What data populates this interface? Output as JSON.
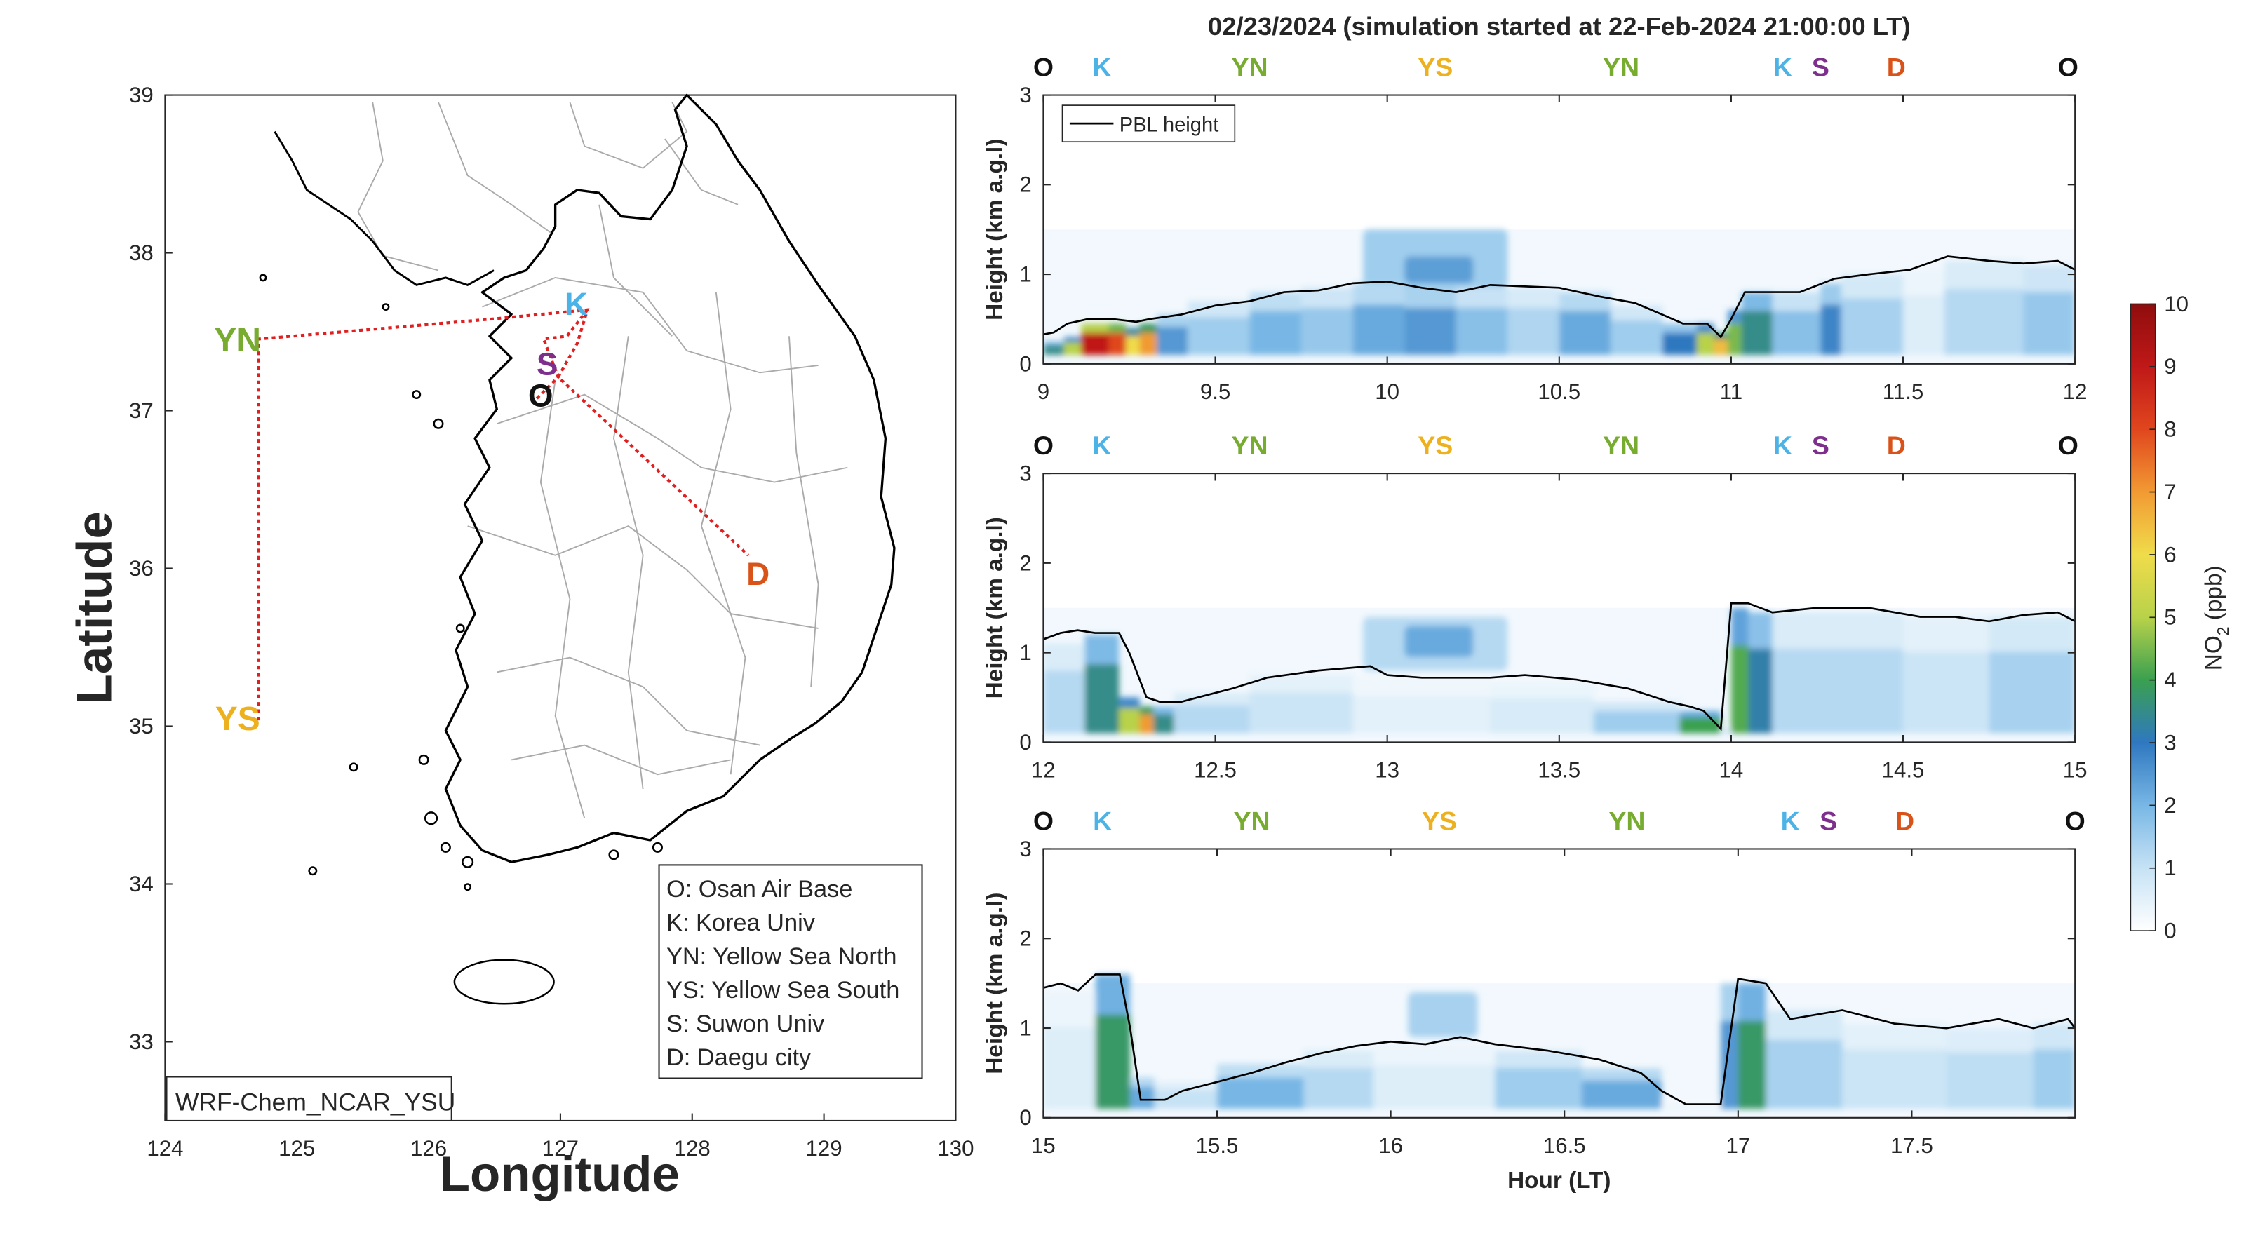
{
  "figure_title": "02/23/2024 (simulation started at 22-Feb-2024 21:00:00 LT)",
  "colors": {
    "O": "#111111",
    "K": "#4DB3E6",
    "YN": "#77AC30",
    "YS": "#EDB120",
    "S": "#7E2F8E",
    "D": "#D95319",
    "pbl": "#000000",
    "track": "#E02020",
    "coast": "#000000",
    "boundary": "#aaaaaa"
  },
  "map": {
    "xlabel": "Longitude",
    "ylabel": "Latitude",
    "xlim": [
      124,
      130
    ],
    "ylim": [
      32.5,
      39
    ],
    "xticks": [
      "124",
      "125",
      "126",
      "127",
      "128",
      "129",
      "130"
    ],
    "yticks": [
      "33",
      "34",
      "35",
      "36",
      "37",
      "38",
      "39"
    ],
    "model_label": "WRF-Chem_NCAR_YSU",
    "site_labels": [
      {
        "code": "K",
        "lon": 127.12,
        "lat": 37.68
      },
      {
        "code": "S",
        "lon": 126.9,
        "lat": 37.3
      },
      {
        "code": "O",
        "lon": 126.85,
        "lat": 37.1
      },
      {
        "code": "YN",
        "lon": 124.55,
        "lat": 37.45
      },
      {
        "code": "YS",
        "lon": 124.55,
        "lat": 35.05
      },
      {
        "code": "D",
        "lon": 128.5,
        "lat": 35.97
      }
    ],
    "legend": [
      "O: Osan Air Base",
      "K: Korea Univ",
      "YN: Yellow Sea North",
      "YS: Yellow Sea South",
      "S: Suwon Univ",
      "D: Daegu city"
    ]
  },
  "chart_data": {
    "type": "heatmap",
    "title": "02/23/2024 (simulation started at 22-Feb-2024 21:00:00 LT)",
    "xlabel": "Hour (LT)",
    "ylabel": "Height (km a.g.l)",
    "colorbar_label": "NO2 (ppb)",
    "colorbar_ticks": [
      "0",
      "1",
      "2",
      "3",
      "4",
      "5",
      "6",
      "7",
      "8",
      "9",
      "10"
    ],
    "clim": [
      0,
      10
    ],
    "legend": [
      "PBL height"
    ],
    "station_order": [
      "O",
      "K",
      "YN",
      "YS",
      "YN",
      "K",
      "S",
      "D",
      "O"
    ],
    "panels": [
      {
        "xlim": [
          9,
          12
        ],
        "ylim": [
          0,
          3
        ],
        "xticks": [
          "9",
          "9.5",
          "10",
          "10.5",
          "11",
          "11.5",
          "12"
        ],
        "yticks": [
          "0",
          "1",
          "2",
          "3"
        ],
        "stations": [
          {
            "code": "O",
            "x": 9.0
          },
          {
            "code": "K",
            "x": 9.17
          },
          {
            "code": "YN",
            "x": 9.6
          },
          {
            "code": "YS",
            "x": 10.14
          },
          {
            "code": "YN",
            "x": 10.68
          },
          {
            "code": "K",
            "x": 11.15
          },
          {
            "code": "S",
            "x": 11.26
          },
          {
            "code": "D",
            "x": 11.48
          },
          {
            "code": "O",
            "x": 11.98
          }
        ],
        "pbl": [
          [
            9.0,
            0.33
          ],
          [
            9.03,
            0.35
          ],
          [
            9.07,
            0.45
          ],
          [
            9.13,
            0.5
          ],
          [
            9.2,
            0.5
          ],
          [
            9.27,
            0.47
          ],
          [
            9.31,
            0.5
          ],
          [
            9.4,
            0.55
          ],
          [
            9.5,
            0.65
          ],
          [
            9.6,
            0.7
          ],
          [
            9.7,
            0.8
          ],
          [
            9.8,
            0.82
          ],
          [
            9.9,
            0.9
          ],
          [
            10.0,
            0.92
          ],
          [
            10.1,
            0.85
          ],
          [
            10.2,
            0.8
          ],
          [
            10.3,
            0.88
          ],
          [
            10.5,
            0.85
          ],
          [
            10.62,
            0.75
          ],
          [
            10.72,
            0.68
          ],
          [
            10.8,
            0.55
          ],
          [
            10.86,
            0.45
          ],
          [
            10.93,
            0.45
          ],
          [
            10.97,
            0.3
          ],
          [
            11.0,
            0.5
          ],
          [
            11.04,
            0.8
          ],
          [
            11.12,
            0.8
          ],
          [
            11.2,
            0.8
          ],
          [
            11.3,
            0.95
          ],
          [
            11.4,
            1.0
          ],
          [
            11.52,
            1.05
          ],
          [
            11.63,
            1.2
          ],
          [
            11.75,
            1.15
          ],
          [
            11.85,
            1.12
          ],
          [
            11.95,
            1.15
          ],
          [
            12.0,
            1.05
          ]
        ],
        "cells": [
          {
            "x0": 9.0,
            "x1": 9.06,
            "y": 0.25,
            "v": 3.5
          },
          {
            "x0": 9.06,
            "x1": 9.11,
            "y": 0.3,
            "v": 5.0
          },
          {
            "x0": 9.11,
            "x1": 9.19,
            "y": 0.45,
            "v": 9.0
          },
          {
            "x0": 9.19,
            "x1": 9.24,
            "y": 0.45,
            "v": 8.0
          },
          {
            "x0": 9.24,
            "x1": 9.28,
            "y": 0.4,
            "v": 6.0
          },
          {
            "x0": 9.28,
            "x1": 9.33,
            "y": 0.45,
            "v": 7.0
          },
          {
            "x0": 9.33,
            "x1": 9.42,
            "y": 0.55,
            "v": 2.5
          },
          {
            "x0": 9.42,
            "x1": 9.6,
            "y": 0.7,
            "v": 1.5
          },
          {
            "x0": 9.6,
            "x1": 9.75,
            "y": 0.8,
            "v": 2.0
          },
          {
            "x0": 9.75,
            "x1": 9.9,
            "y": 0.85,
            "v": 1.6
          },
          {
            "x0": 9.9,
            "x1": 10.05,
            "y": 0.9,
            "v": 2.2
          },
          {
            "x0": 10.05,
            "x1": 10.2,
            "y": 0.85,
            "v": 2.5
          },
          {
            "x0": 10.2,
            "x1": 10.35,
            "y": 0.85,
            "v": 1.8
          },
          {
            "x0": 10.35,
            "x1": 10.5,
            "y": 0.85,
            "v": 1.3
          },
          {
            "x0": 10.5,
            "x1": 10.65,
            "y": 0.8,
            "v": 2.2
          },
          {
            "x0": 10.65,
            "x1": 10.8,
            "y": 0.65,
            "v": 1.5
          },
          {
            "x0": 10.8,
            "x1": 10.9,
            "y": 0.45,
            "v": 3.0
          },
          {
            "x0": 10.9,
            "x1": 10.95,
            "y": 0.45,
            "v": 5.0
          },
          {
            "x0": 10.95,
            "x1": 10.99,
            "y": 0.35,
            "v": 6.5
          },
          {
            "x0": 10.99,
            "x1": 11.03,
            "y": 0.6,
            "v": 4.5
          },
          {
            "x0": 11.03,
            "x1": 11.12,
            "y": 0.8,
            "v": 3.5
          },
          {
            "x0": 11.12,
            "x1": 11.26,
            "y": 0.8,
            "v": 1.8
          },
          {
            "x0": 11.26,
            "x1": 11.32,
            "y": 0.9,
            "v": 2.8
          },
          {
            "x0": 11.32,
            "x1": 11.5,
            "y": 1.0,
            "v": 1.4
          },
          {
            "x0": 11.5,
            "x1": 11.62,
            "y": 1.05,
            "v": 0.6
          },
          {
            "x0": 11.62,
            "x1": 11.85,
            "y": 1.15,
            "v": 1.2
          },
          {
            "x0": 11.85,
            "x1": 12.0,
            "y": 1.1,
            "v": 1.6
          }
        ],
        "blobs": [
          {
            "x0": 9.93,
            "x1": 10.35,
            "y0": 0.85,
            "y1": 1.5,
            "v": 1.5
          },
          {
            "x0": 10.05,
            "x1": 10.25,
            "y0": 0.9,
            "y1": 1.2,
            "v": 2.4
          }
        ]
      },
      {
        "xlim": [
          12,
          15
        ],
        "ylim": [
          0,
          3
        ],
        "xticks": [
          "12",
          "12.5",
          "13",
          "13.5",
          "14",
          "14.5",
          "15"
        ],
        "yticks": [
          "0",
          "1",
          "2",
          "3"
        ],
        "stations": [
          {
            "code": "O",
            "x": 12.0
          },
          {
            "code": "K",
            "x": 12.17
          },
          {
            "code": "YN",
            "x": 12.6
          },
          {
            "code": "YS",
            "x": 13.14
          },
          {
            "code": "YN",
            "x": 13.68
          },
          {
            "code": "K",
            "x": 14.15
          },
          {
            "code": "S",
            "x": 14.26
          },
          {
            "code": "D",
            "x": 14.48
          },
          {
            "code": "O",
            "x": 14.98
          }
        ],
        "pbl": [
          [
            12.0,
            1.15
          ],
          [
            12.05,
            1.22
          ],
          [
            12.1,
            1.25
          ],
          [
            12.15,
            1.22
          ],
          [
            12.22,
            1.22
          ],
          [
            12.25,
            1.0
          ],
          [
            12.3,
            0.5
          ],
          [
            12.34,
            0.45
          ],
          [
            12.4,
            0.45
          ],
          [
            12.45,
            0.5
          ],
          [
            12.55,
            0.6
          ],
          [
            12.65,
            0.72
          ],
          [
            12.8,
            0.8
          ],
          [
            12.95,
            0.85
          ],
          [
            13.0,
            0.75
          ],
          [
            13.1,
            0.72
          ],
          [
            13.3,
            0.72
          ],
          [
            13.4,
            0.75
          ],
          [
            13.55,
            0.7
          ],
          [
            13.7,
            0.6
          ],
          [
            13.82,
            0.45
          ],
          [
            13.88,
            0.4
          ],
          [
            13.92,
            0.35
          ],
          [
            13.97,
            0.15
          ],
          [
            14.0,
            1.55
          ],
          [
            14.05,
            1.55
          ],
          [
            14.12,
            1.45
          ],
          [
            14.25,
            1.5
          ],
          [
            14.4,
            1.5
          ],
          [
            14.55,
            1.4
          ],
          [
            14.65,
            1.4
          ],
          [
            14.75,
            1.35
          ],
          [
            14.85,
            1.42
          ],
          [
            14.95,
            1.45
          ],
          [
            15.0,
            1.35
          ]
        ],
        "cells": [
          {
            "x0": 12.0,
            "x1": 12.12,
            "y": 1.1,
            "v": 1.2
          },
          {
            "x0": 12.12,
            "x1": 12.22,
            "y": 1.2,
            "v": 3.5
          },
          {
            "x0": 12.22,
            "x1": 12.28,
            "y": 0.5,
            "v": 5.0
          },
          {
            "x0": 12.28,
            "x1": 12.32,
            "y": 0.4,
            "v": 7.0
          },
          {
            "x0": 12.32,
            "x1": 12.38,
            "y": 0.4,
            "v": 3.5
          },
          {
            "x0": 12.38,
            "x1": 12.6,
            "y": 0.55,
            "v": 1.2
          },
          {
            "x0": 12.6,
            "x1": 12.9,
            "y": 0.75,
            "v": 0.9
          },
          {
            "x0": 12.9,
            "x1": 13.3,
            "y": 0.7,
            "v": 0.5
          },
          {
            "x0": 13.3,
            "x1": 13.6,
            "y": 0.65,
            "v": 0.7
          },
          {
            "x0": 13.6,
            "x1": 13.85,
            "y": 0.45,
            "v": 1.5
          },
          {
            "x0": 13.85,
            "x1": 13.97,
            "y": 0.35,
            "v": 4.0
          },
          {
            "x0": 13.97,
            "x1": 14.0,
            "y": 0.15,
            "v": 1.0
          },
          {
            "x0": 14.0,
            "x1": 14.05,
            "y": 1.5,
            "v": 4.2
          },
          {
            "x0": 14.05,
            "x1": 14.12,
            "y": 1.45,
            "v": 3.2
          },
          {
            "x0": 14.12,
            "x1": 14.5,
            "y": 1.45,
            "v": 1.2
          },
          {
            "x0": 14.5,
            "x1": 14.75,
            "y": 1.4,
            "v": 0.9
          },
          {
            "x0": 14.75,
            "x1": 15.0,
            "y": 1.4,
            "v": 1.4
          }
        ],
        "blobs": [
          {
            "x0": 12.93,
            "x1": 13.35,
            "y0": 0.8,
            "y1": 1.4,
            "v": 1.2
          },
          {
            "x0": 13.05,
            "x1": 13.25,
            "y0": 0.95,
            "y1": 1.3,
            "v": 2.2
          }
        ]
      },
      {
        "xlim": [
          15,
          17.97
        ],
        "ylim": [
          0,
          3
        ],
        "xticks": [
          "15",
          "15.5",
          "16",
          "16.5",
          "17",
          "17.5"
        ],
        "yticks": [
          "0",
          "1",
          "2",
          "3"
        ],
        "stations": [
          {
            "code": "O",
            "x": 15.0
          },
          {
            "code": "K",
            "x": 15.17
          },
          {
            "code": "YN",
            "x": 15.6
          },
          {
            "code": "YS",
            "x": 16.14
          },
          {
            "code": "YN",
            "x": 16.68
          },
          {
            "code": "K",
            "x": 17.15
          },
          {
            "code": "S",
            "x": 17.26
          },
          {
            "code": "D",
            "x": 17.48
          },
          {
            "code": "O",
            "x": 17.97
          }
        ],
        "pbl": [
          [
            15.0,
            1.45
          ],
          [
            15.05,
            1.5
          ],
          [
            15.1,
            1.42
          ],
          [
            15.15,
            1.6
          ],
          [
            15.22,
            1.6
          ],
          [
            15.25,
            1.0
          ],
          [
            15.28,
            0.2
          ],
          [
            15.35,
            0.2
          ],
          [
            15.4,
            0.3
          ],
          [
            15.5,
            0.4
          ],
          [
            15.6,
            0.5
          ],
          [
            15.7,
            0.62
          ],
          [
            15.8,
            0.72
          ],
          [
            15.9,
            0.8
          ],
          [
            16.0,
            0.85
          ],
          [
            16.1,
            0.82
          ],
          [
            16.2,
            0.9
          ],
          [
            16.3,
            0.82
          ],
          [
            16.45,
            0.75
          ],
          [
            16.6,
            0.65
          ],
          [
            16.72,
            0.5
          ],
          [
            16.78,
            0.3
          ],
          [
            16.85,
            0.15
          ],
          [
            16.95,
            0.15
          ],
          [
            17.0,
            1.55
          ],
          [
            17.08,
            1.5
          ],
          [
            17.15,
            1.1
          ],
          [
            17.3,
            1.2
          ],
          [
            17.45,
            1.05
          ],
          [
            17.6,
            1.0
          ],
          [
            17.75,
            1.1
          ],
          [
            17.85,
            1.0
          ],
          [
            17.95,
            1.1
          ],
          [
            17.97,
            1.0
          ]
        ],
        "cells": [
          {
            "x0": 15.0,
            "x1": 15.15,
            "y": 1.4,
            "v": 0.6
          },
          {
            "x0": 15.15,
            "x1": 15.25,
            "y": 1.6,
            "v": 3.8
          },
          {
            "x0": 15.25,
            "x1": 15.32,
            "y": 0.45,
            "v": 2.2
          },
          {
            "x0": 15.32,
            "x1": 15.5,
            "y": 0.4,
            "v": 1.0
          },
          {
            "x0": 15.5,
            "x1": 15.75,
            "y": 0.6,
            "v": 2.0
          },
          {
            "x0": 15.75,
            "x1": 15.95,
            "y": 0.75,
            "v": 1.2
          },
          {
            "x0": 15.95,
            "x1": 16.3,
            "y": 0.8,
            "v": 0.6
          },
          {
            "x0": 16.3,
            "x1": 16.55,
            "y": 0.75,
            "v": 1.5
          },
          {
            "x0": 16.55,
            "x1": 16.78,
            "y": 0.55,
            "v": 2.2
          },
          {
            "x0": 16.78,
            "x1": 16.95,
            "y": 0.2,
            "v": 0.3
          },
          {
            "x0": 16.95,
            "x1": 17.0,
            "y": 1.5,
            "v": 2.5
          },
          {
            "x0": 17.0,
            "x1": 17.08,
            "y": 1.5,
            "v": 3.8
          },
          {
            "x0": 17.08,
            "x1": 17.3,
            "y": 1.2,
            "v": 1.4
          },
          {
            "x0": 17.3,
            "x1": 17.6,
            "y": 1.05,
            "v": 0.9
          },
          {
            "x0": 17.6,
            "x1": 17.85,
            "y": 1.0,
            "v": 1.1
          },
          {
            "x0": 17.85,
            "x1": 17.97,
            "y": 1.05,
            "v": 1.5
          }
        ],
        "blobs": [
          {
            "x0": 16.05,
            "x1": 16.25,
            "y0": 0.9,
            "y1": 1.4,
            "v": 1.4
          }
        ]
      }
    ]
  }
}
